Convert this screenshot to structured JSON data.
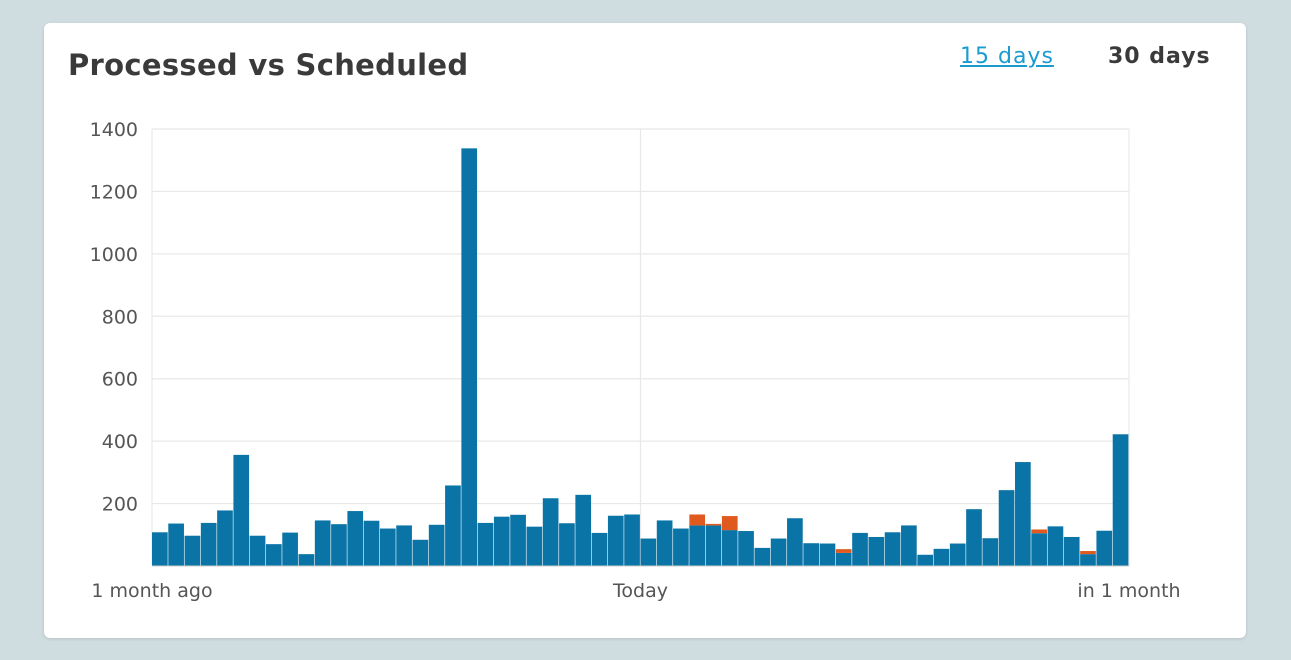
{
  "header": {
    "title": "Processed vs Scheduled",
    "range_options": [
      {
        "label": "15 days",
        "active": false
      },
      {
        "label": "30 days",
        "active": true
      }
    ]
  },
  "colors": {
    "processed": "#0a74a6",
    "scheduled": "#e05a1f",
    "grid": "#e8e8e8",
    "axis_text": "#555555"
  },
  "chart_data": {
    "type": "bar",
    "stacked": true,
    "title": "",
    "xlabel": "",
    "ylabel": "",
    "ylim": [
      0,
      1400
    ],
    "y_ticks": [
      200,
      400,
      600,
      800,
      1000,
      1200,
      1400
    ],
    "x_tick_labels": [
      {
        "label": "1 month ago",
        "at": 0
      },
      {
        "label": "Today",
        "at": 30
      },
      {
        "label": "in 1 month",
        "at": 60
      }
    ],
    "grid": true,
    "series": [
      {
        "values": [
          108,
          136,
          97,
          138,
          178,
          356,
          97,
          70,
          107,
          38,
          146,
          134,
          176,
          145,
          120,
          130,
          84,
          132,
          258,
          1338,
          138,
          158,
          164,
          126,
          217,
          137,
          228,
          106,
          161,
          165,
          88,
          146,
          120,
          130,
          130,
          115,
          112,
          58,
          88,
          153,
          73,
          72,
          42,
          106,
          93,
          108,
          130,
          36,
          55,
          72,
          182,
          89,
          243,
          333,
          105,
          127,
          93,
          38,
          113,
          422
        ]
      },
      {
        "values": [
          0,
          0,
          0,
          0,
          0,
          0,
          0,
          0,
          0,
          0,
          0,
          0,
          0,
          0,
          0,
          0,
          0,
          0,
          0,
          0,
          0,
          0,
          0,
          0,
          0,
          0,
          0,
          0,
          0,
          0,
          0,
          0,
          0,
          35,
          5,
          45,
          0,
          0,
          0,
          0,
          0,
          0,
          12,
          0,
          0,
          0,
          0,
          0,
          0,
          0,
          0,
          0,
          0,
          0,
          12,
          0,
          0,
          10,
          0,
          0
        ]
      }
    ]
  }
}
